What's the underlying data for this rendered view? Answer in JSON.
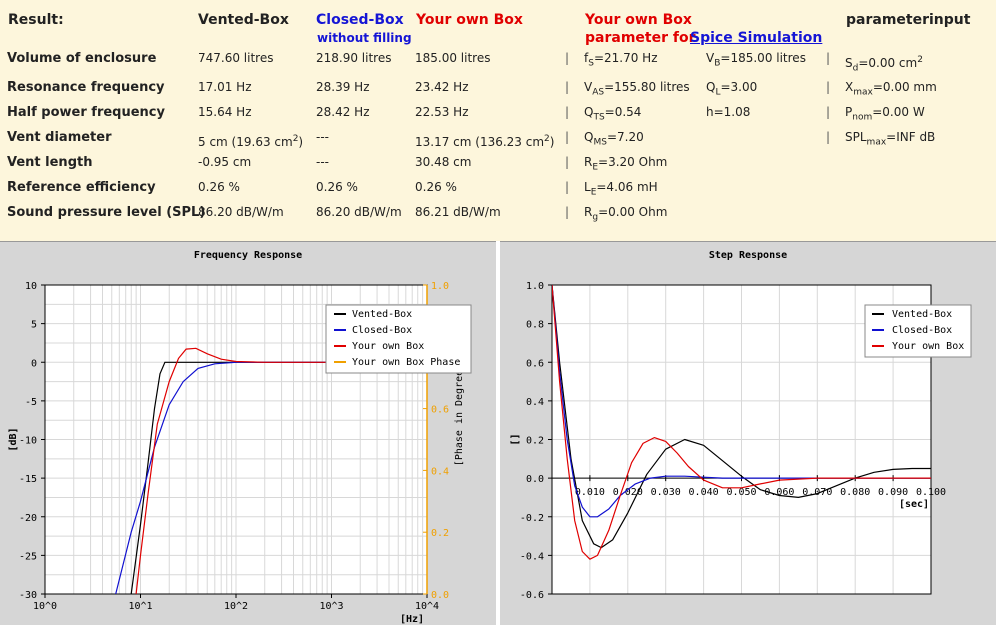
{
  "headers": {
    "result": "Result:",
    "vented": "Vented-Box",
    "closed": "Closed-Box",
    "closed_sub": "without filling",
    "own": "Your own Box",
    "spice_line1": "Your own Box",
    "spice_line2": "parameter for",
    "spice_link": "Spice Simulation",
    "paraminput": "parameterinput"
  },
  "rows": [
    {
      "label": "Volume of enclosure",
      "vented": "747.60 litres",
      "closed": "218.90 litres",
      "own": "185.00 litres"
    },
    {
      "label": "Resonance frequency",
      "vented": "17.01 Hz",
      "closed": "28.39 Hz",
      "own": "23.42 Hz"
    },
    {
      "label": "Half power frequency",
      "vented": "15.64 Hz",
      "closed": "28.42 Hz",
      "own": "22.53 Hz"
    },
    {
      "label": "Vent diameter",
      "vented": "5 cm (19.63 cm",
      "vented_sup": "2",
      "vented_end": ")",
      "closed": "---",
      "own": "13.17 cm (136.23 cm",
      "own_sup": "2",
      "own_end": ")"
    },
    {
      "label": "Vent length",
      "vented": "-0.95 cm",
      "closed": "---",
      "own": "30.48 cm"
    },
    {
      "label": "Reference efficiency",
      "vented": "0.26 %",
      "closed": "0.26 %",
      "own": "0.26 %"
    },
    {
      "label": "Sound pressure level (SPL)",
      "vented": "86.20 dB/W/m",
      "closed": "86.20 dB/W/m",
      "own": "86.21 dB/W/m"
    }
  ],
  "pipe": "|",
  "spice": {
    "fs": {
      "sym": "f",
      "sub": "S",
      "val": "=21.70 Hz"
    },
    "vb": {
      "sym": "V",
      "sub": "B",
      "val": "=185.00 litres"
    },
    "vas": {
      "sym": "V",
      "sub": "AS",
      "val": "=155.80 litres"
    },
    "ql": {
      "sym": "Q",
      "sub": "L",
      "val": "=3.00"
    },
    "qts": {
      "sym": "Q",
      "sub": "TS",
      "val": "=0.54"
    },
    "h": {
      "text": "h=1.08"
    },
    "qms": {
      "sym": "Q",
      "sub": "MS",
      "val": "=7.20"
    },
    "re": {
      "sym": "R",
      "sub": "E",
      "val": "=3.20 Ohm"
    },
    "le": {
      "sym": "L",
      "sub": "E",
      "val": "=4.06 mH"
    },
    "rg": {
      "sym": "R",
      "sub": "g",
      "val": "=0.00 Ohm"
    }
  },
  "params": {
    "sd": {
      "sym": "S",
      "sub": "d",
      "val": "=0.00 cm",
      "sup": "2"
    },
    "xmax": {
      "sym": "X",
      "sub": "max",
      "val": "=0.00 mm"
    },
    "pnom": {
      "sym": "P",
      "sub": "nom",
      "val": "=0.00 W"
    },
    "splmax": {
      "sym": "SPL",
      "sub": "max",
      "val": "=INF dB"
    }
  },
  "colors": {
    "vented": "#000000",
    "closed": "#1010d0",
    "own": "#e00000",
    "phase": "#f0a000",
    "grid": "#d8d8d8"
  },
  "chart_data": [
    {
      "type": "line",
      "title": "Frequency Response",
      "xlabel": "[Hz]",
      "ylabel": "[dB]",
      "y2label": "[Phase in Degrees]",
      "x_scale": "log",
      "xlim": [
        1,
        10000
      ],
      "ylim": [
        -30,
        10
      ],
      "y2lim": [
        0.0,
        1.0
      ],
      "xticklabels": [
        "10^0",
        "10^1",
        "10^2",
        "10^3",
        "10^4"
      ],
      "yticks": [
        10,
        5,
        0,
        -5,
        -10,
        -15,
        -20,
        -25,
        -30
      ],
      "y2ticks": [
        "1.0",
        "0.8",
        "0.6",
        "0.4",
        "0.2",
        "0.0"
      ],
      "grid": true,
      "legend": "top-right",
      "series": [
        {
          "name": "Vented-Box",
          "color": "#000000",
          "x": [
            8,
            10,
            12,
            14,
            16,
            18,
            20,
            25,
            40,
            100,
            10000
          ],
          "y": [
            -30,
            -21,
            -13,
            -6,
            -1.5,
            0,
            0,
            0,
            0,
            0,
            0
          ]
        },
        {
          "name": "Closed-Box",
          "color": "#1010d0",
          "x": [
            5.5,
            8,
            10,
            14,
            20,
            28,
            40,
            60,
            100,
            300,
            10000
          ],
          "y": [
            -30,
            -22,
            -18,
            -11,
            -5.5,
            -2.5,
            -0.8,
            -0.2,
            0,
            0,
            0
          ]
        },
        {
          "name": "Your own Box",
          "color": "#e00000",
          "x": [
            9,
            10,
            12,
            15,
            20,
            25,
            30,
            38,
            50,
            70,
            100,
            200,
            10000
          ],
          "y": [
            -30,
            -25,
            -17,
            -8,
            -2.5,
            0.5,
            1.7,
            1.8,
            1.1,
            0.4,
            0.1,
            0,
            0
          ]
        },
        {
          "name": "Your own Box Phase",
          "color": "#f0a000",
          "x": [],
          "y": []
        }
      ]
    },
    {
      "type": "line",
      "title": "Step Response",
      "xlabel": "[sec]",
      "ylabel": "[]",
      "xlim": [
        0,
        0.1
      ],
      "ylim": [
        -0.6,
        1.0
      ],
      "xticklabels": [
        "0.010",
        "0.020",
        "0.030",
        "0.040",
        "0.050",
        "0.060",
        "0.070",
        "0.080",
        "0.090",
        "0.100"
      ],
      "yticks": [
        "1.0",
        "0.8",
        "0.6",
        "0.4",
        "0.2",
        "0.0",
        "-0.2",
        "-0.4",
        "-0.6"
      ],
      "grid": true,
      "legend": "top-right",
      "series": [
        {
          "name": "Vented-Box",
          "color": "#000000",
          "x": [
            0,
            0.002,
            0.005,
            0.008,
            0.011,
            0.013,
            0.016,
            0.02,
            0.025,
            0.03,
            0.035,
            0.04,
            0.045,
            0.05,
            0.055,
            0.06,
            0.065,
            0.07,
            0.075,
            0.08,
            0.085,
            0.09,
            0.095,
            0.1
          ],
          "y": [
            1,
            0.6,
            0.1,
            -0.22,
            -0.34,
            -0.36,
            -0.32,
            -0.18,
            0.02,
            0.15,
            0.2,
            0.17,
            0.09,
            0.01,
            -0.06,
            -0.09,
            -0.1,
            -0.08,
            -0.04,
            0,
            0.03,
            0.045,
            0.05,
            0.05
          ]
        },
        {
          "name": "Closed-Box",
          "color": "#1010d0",
          "x": [
            0,
            0.002,
            0.004,
            0.006,
            0.008,
            0.01,
            0.012,
            0.015,
            0.018,
            0.022,
            0.026,
            0.03,
            0.035,
            0.04,
            0.045,
            0.05,
            0.06,
            0.1
          ],
          "y": [
            1,
            0.55,
            0.2,
            -0.04,
            -0.15,
            -0.2,
            -0.2,
            -0.16,
            -0.09,
            -0.03,
            0,
            0.01,
            0.01,
            0.005,
            0,
            0,
            0,
            0
          ]
        },
        {
          "name": "Your own Box",
          "color": "#e00000",
          "x": [
            0,
            0.002,
            0.004,
            0.006,
            0.008,
            0.01,
            0.012,
            0.015,
            0.018,
            0.021,
            0.024,
            0.027,
            0.03,
            0.033,
            0.036,
            0.04,
            0.045,
            0.05,
            0.055,
            0.06,
            0.07,
            0.1
          ],
          "y": [
            1,
            0.5,
            0.1,
            -0.22,
            -0.38,
            -0.42,
            -0.4,
            -0.27,
            -0.09,
            0.08,
            0.18,
            0.21,
            0.19,
            0.13,
            0.06,
            -0.01,
            -0.05,
            -0.05,
            -0.03,
            -0.01,
            0,
            0
          ]
        }
      ]
    }
  ]
}
